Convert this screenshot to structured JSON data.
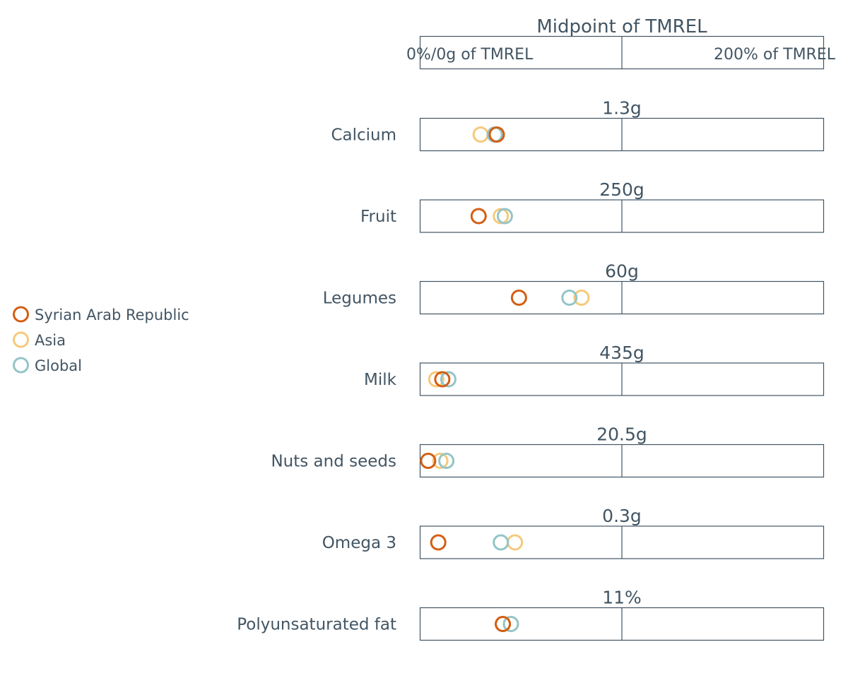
{
  "colors": {
    "text": "#425563",
    "frame": "#425563",
    "syrian_arab_republic": "#D35E13",
    "asia": "#F6C97B",
    "global": "#93C5C7"
  },
  "header": {
    "title": "Midpoint of TMREL",
    "left_label": "0%/0g of TMREL",
    "right_label": "200% of TMREL"
  },
  "legend": [
    {
      "label": "Syrian Arab Republic",
      "color": "#D35E13"
    },
    {
      "label": "Asia",
      "color": "#F6C97B"
    },
    {
      "label": "Global",
      "color": "#93C5C7"
    }
  ],
  "chart_data": {
    "type": "scatter",
    "x_unit": "% of TMREL",
    "xlim": [
      0,
      200
    ],
    "series_names": [
      "Syrian Arab Republic",
      "Asia",
      "Global"
    ],
    "rows": [
      {
        "label": "Calcium",
        "tmrel": "1.3g",
        "values": {
          "Syrian Arab Republic": 38,
          "Asia": 30,
          "Global": 37
        }
      },
      {
        "label": "Fruit",
        "tmrel": "250g",
        "values": {
          "Syrian Arab Republic": 29,
          "Asia": 40,
          "Global": 42
        }
      },
      {
        "label": "Legumes",
        "tmrel": "60g",
        "values": {
          "Syrian Arab Republic": 49,
          "Asia": 80,
          "Global": 74
        }
      },
      {
        "label": "Milk",
        "tmrel": "435g",
        "values": {
          "Syrian Arab Republic": 11,
          "Asia": 8,
          "Global": 14
        }
      },
      {
        "label": "Nuts and seeds",
        "tmrel": "20.5g",
        "values": {
          "Syrian Arab Republic": 4,
          "Asia": 10,
          "Global": 13
        }
      },
      {
        "label": "Omega 3",
        "tmrel": "0.3g",
        "values": {
          "Syrian Arab Republic": 9,
          "Asia": 47,
          "Global": 40
        }
      },
      {
        "label": "Polyunsaturated fat",
        "tmrel": "11%",
        "values": {
          "Syrian Arab Republic": 41,
          "Asia": 41,
          "Global": 45
        }
      }
    ]
  }
}
